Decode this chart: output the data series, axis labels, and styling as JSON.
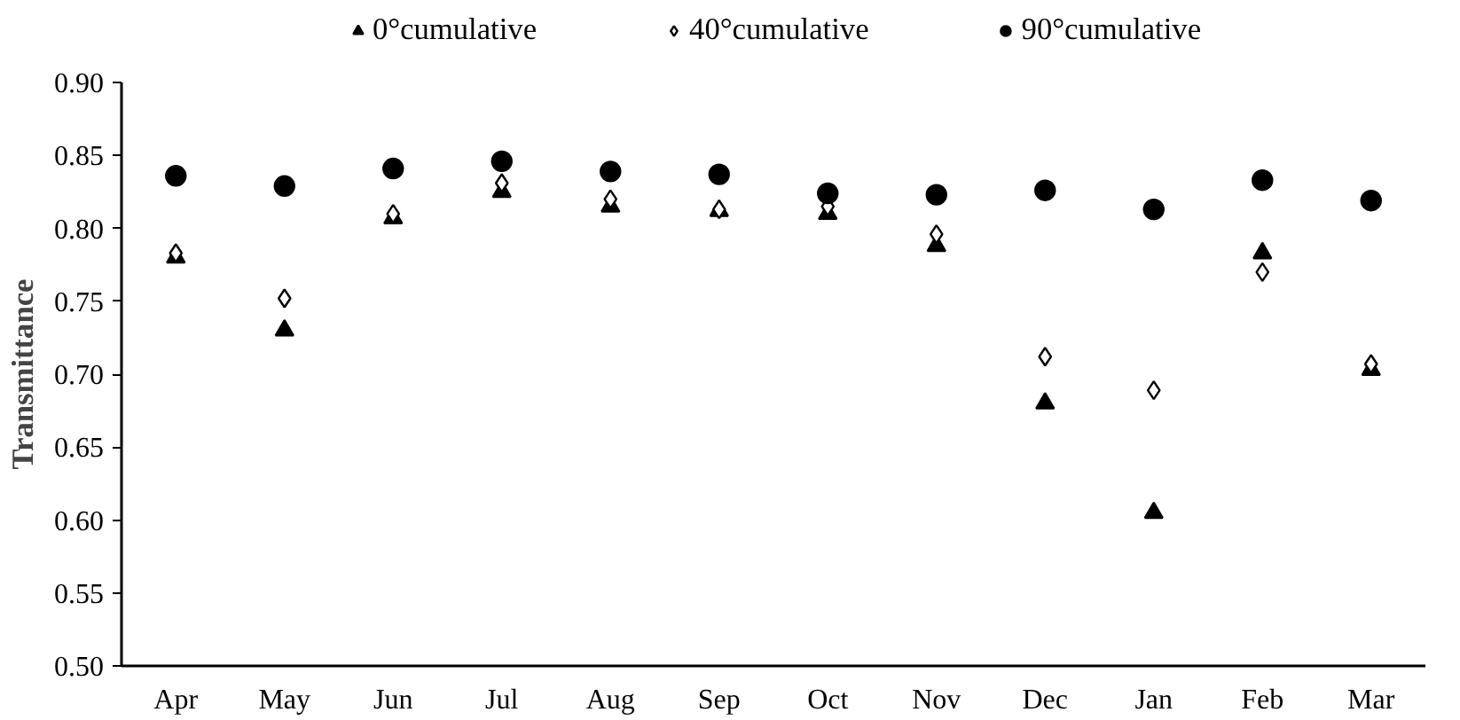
{
  "chart_data": {
    "type": "scatter",
    "ylabel": "Transmittance",
    "categories": [
      "Apr",
      "May",
      "Jun",
      "Jul",
      "Aug",
      "Sep",
      "Oct",
      "Nov",
      "Dec",
      "Jan",
      "Feb",
      "Mar"
    ],
    "series": [
      {
        "name": "0°cumulative",
        "color": "#000000",
        "marker": "triangle",
        "values": [
          0.78,
          0.73,
          0.807,
          0.825,
          0.815,
          0.812,
          0.81,
          0.788,
          0.68,
          0.605,
          0.783,
          0.703
        ]
      },
      {
        "name": "40°cumulative",
        "color": "#000000",
        "marker": "diamond",
        "values": [
          0.783,
          0.752,
          0.81,
          0.831,
          0.82,
          0.813,
          0.815,
          0.796,
          0.712,
          0.689,
          0.77,
          0.707
        ]
      },
      {
        "name": "90°cumulative",
        "color": "#000000",
        "marker": "circle",
        "values": [
          0.836,
          0.829,
          0.841,
          0.846,
          0.839,
          0.837,
          0.824,
          0.823,
          0.826,
          0.813,
          0.833,
          0.819
        ]
      }
    ],
    "ylim": [
      0.5,
      0.9
    ],
    "yticks": [
      {
        "value": 0.5,
        "label": "0.50"
      },
      {
        "value": 0.55,
        "label": "0.55"
      },
      {
        "value": 0.6,
        "label": "0.60"
      },
      {
        "value": 0.65,
        "label": "0.65"
      },
      {
        "value": 0.7,
        "label": "0.70"
      },
      {
        "value": 0.75,
        "label": "0.75"
      },
      {
        "value": 0.8,
        "label": "0.80"
      },
      {
        "value": 0.85,
        "label": "0.85"
      },
      {
        "value": 0.9,
        "label": "0.90"
      }
    ],
    "grid": false,
    "legend": "top"
  }
}
